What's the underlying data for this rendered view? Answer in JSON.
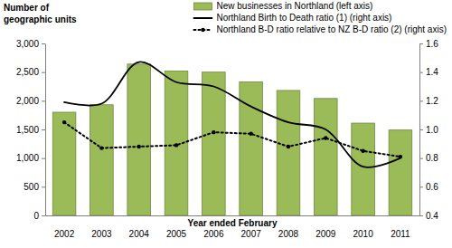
{
  "chart_data": {
    "type": "combo",
    "y_label": "Number of geographic units",
    "x_label": "Year ended February",
    "categories": [
      "2002",
      "2003",
      "2004",
      "2005",
      "2006",
      "2007",
      "2008",
      "2009",
      "2010",
      "2011"
    ],
    "series": [
      {
        "name": "New businesses in Northland (left axis)",
        "type": "bar",
        "color": "#9bbb59",
        "values": [
          1800,
          1930,
          2640,
          2520,
          2500,
          2330,
          2180,
          2040,
          1610,
          1490
        ]
      },
      {
        "name": "Northland Birth to Death ratio (1) (right axis)",
        "type": "line",
        "axis": "y2",
        "color": "#000000",
        "line_style": "solid",
        "values": [
          1.19,
          1.18,
          1.47,
          1.33,
          1.3,
          1.16,
          1.05,
          1.0,
          0.74,
          0.8
        ]
      },
      {
        "name": "Northland B-D ratio relative to NZ B-D ratio (2) (right axis)",
        "type": "line",
        "axis": "y2",
        "color": "#000000",
        "line_style": "dotted",
        "marker": "circle",
        "values": [
          1.05,
          0.87,
          0.88,
          0.89,
          0.98,
          0.97,
          0.88,
          0.94,
          0.85,
          0.81
        ]
      }
    ],
    "ylim": [
      0,
      3000
    ],
    "yticks": [
      0,
      500,
      {
        "value": 1000,
        "label": "1,000"
      },
      {
        "value": 1500,
        "label": "1,500"
      },
      {
        "value": 2000,
        "label": "2,000"
      },
      {
        "value": 2500,
        "label": "2,500"
      },
      {
        "value": 3000,
        "label": "3,000"
      }
    ],
    "y2lim": [
      0.4,
      1.6
    ],
    "y2ticks": [
      0.4,
      0.6,
      0.8,
      {
        "value": 1.0,
        "label": "1.0"
      },
      1.2,
      1.4,
      1.6
    ],
    "grid": false,
    "legend": "top-right"
  }
}
